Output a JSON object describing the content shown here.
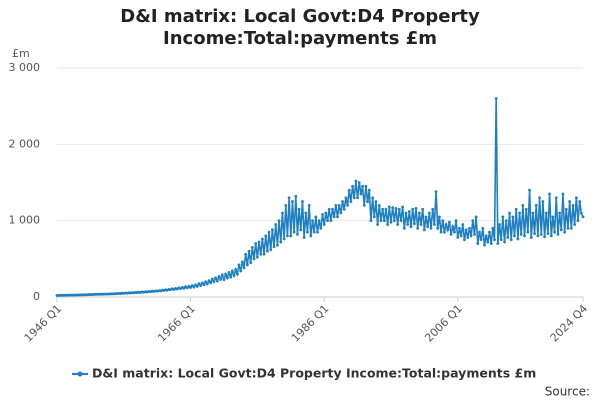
{
  "chart_data": {
    "type": "line",
    "title": "D&I matrix: Local Govt:D4 Property Income:Total:payments £m",
    "y_unit": "£m",
    "source": "Source:",
    "categories": [
      "1946 Q1",
      null,
      null,
      null,
      null,
      null,
      null,
      null,
      null,
      null,
      null,
      null,
      null,
      null,
      null,
      null,
      null,
      null,
      null,
      null,
      null,
      null,
      null,
      null,
      null,
      null,
      null,
      null,
      null,
      null,
      null,
      null,
      null,
      null,
      null,
      null,
      null,
      null,
      null,
      null,
      null,
      null,
      null,
      null,
      null,
      null,
      null,
      null,
      null,
      null,
      null,
      null,
      null,
      null,
      null,
      null,
      null,
      null,
      null,
      null,
      null,
      null,
      null,
      null,
      null,
      null,
      null,
      null,
      null,
      null,
      null,
      null,
      null,
      null,
      null,
      null,
      null,
      null,
      null,
      null,
      "1966 Q1",
      null,
      null,
      null,
      null,
      null,
      null,
      null,
      null,
      null,
      null,
      null,
      null,
      null,
      null,
      null,
      null,
      null,
      null,
      null,
      null,
      null,
      null,
      null,
      null,
      null,
      null,
      null,
      null,
      null,
      null,
      null,
      null,
      null,
      null,
      null,
      null,
      null,
      null,
      null,
      null,
      null,
      null,
      null,
      null,
      null,
      null,
      null,
      null,
      null,
      null,
      null,
      null,
      null,
      null,
      null,
      null,
      null,
      null,
      null,
      null,
      null,
      null,
      null,
      null,
      null,
      null,
      null,
      null,
      null,
      null,
      null,
      null,
      null,
      null,
      null,
      null,
      null,
      null,
      null,
      "1986 Q1",
      null,
      null,
      null,
      null,
      null,
      null,
      null,
      null,
      null,
      null,
      null,
      null,
      null,
      null,
      null,
      null,
      null,
      null,
      null,
      null,
      null,
      null,
      null,
      null,
      null,
      null,
      null,
      null,
      null,
      null,
      null,
      null,
      null,
      null,
      null,
      null,
      null,
      null,
      null,
      null,
      null,
      null,
      null,
      null,
      null,
      null,
      null,
      null,
      null,
      null,
      null,
      null,
      null,
      null,
      null,
      null,
      null,
      null,
      null,
      null,
      null,
      null,
      null,
      null,
      null,
      null,
      null,
      null,
      null,
      null,
      null,
      null,
      null,
      null,
      null,
      null,
      null,
      null,
      null,
      "2006 Q1",
      null,
      null,
      null,
      null,
      null,
      null,
      null,
      null,
      null,
      null,
      null,
      null,
      null,
      null,
      null,
      null,
      null,
      null,
      null,
      null,
      null,
      null,
      null,
      null,
      null,
      null,
      null,
      null,
      null,
      null,
      null,
      null,
      null,
      null,
      null,
      null,
      null,
      null,
      null,
      null,
      null,
      null,
      null,
      null,
      null,
      null,
      null,
      null,
      null,
      null,
      null,
      null,
      null,
      null,
      null,
      null,
      null,
      null,
      null,
      null,
      null,
      null,
      null,
      null,
      null,
      null,
      null,
      null,
      null,
      null,
      null,
      null,
      null,
      null,
      "2024 Q4"
    ],
    "series": [
      {
        "name": "D&I matrix: Local Govt:D4 Property Income:Total:payments £m",
        "color": "#1f7fc1",
        "values": [
          20,
          22,
          21,
          23,
          22,
          24,
          23,
          25,
          24,
          26,
          25,
          27,
          26,
          28,
          27,
          29,
          28,
          30,
          29,
          32,
          31,
          33,
          32,
          35,
          34,
          36,
          35,
          38,
          37,
          39,
          38,
          41,
          40,
          43,
          41,
          45,
          44,
          47,
          45,
          50,
          48,
          52,
          50,
          55,
          53,
          57,
          55,
          60,
          58,
          63,
          60,
          66,
          64,
          69,
          66,
          72,
          70,
          76,
          72,
          80,
          77,
          84,
          80,
          90,
          85,
          95,
          88,
          100,
          95,
          108,
          98,
          112,
          105,
          120,
          110,
          125,
          115,
          135,
          120,
          140,
          125,
          150,
          130,
          160,
          140,
          175,
          150,
          185,
          160,
          200,
          170,
          215,
          185,
          235,
          200,
          250,
          210,
          270,
          230,
          290,
          230,
          300,
          250,
          320,
          260,
          340,
          280,
          360,
          300,
          420,
          340,
          460,
          380,
          560,
          420,
          600,
          450,
          650,
          500,
          700,
          520,
          720,
          560,
          760,
          560,
          800,
          600,
          850,
          620,
          880,
          660,
          950,
          680,
          1000,
          720,
          1100,
          760,
          1200,
          800,
          1300,
          800,
          1250,
          850,
          1320,
          820,
          1150,
          880,
          1250,
          780,
          1100,
          850,
          1200,
          800,
          1000,
          850,
          1050,
          850,
          1000,
          900,
          1080,
          950,
          1100,
          1000,
          1150,
          1000,
          1150,
          1050,
          1200,
          1050,
          1200,
          1100,
          1250,
          1150,
          1300,
          1200,
          1400,
          1250,
          1450,
          1300,
          1520,
          1300,
          1500,
          1350,
          1450,
          1200,
          1450,
          1250,
          1400,
          1000,
          1300,
          1050,
          1250,
          950,
          1200,
          1000,
          1150,
          1000,
          1150,
          950,
          1180,
          980,
          1170,
          1000,
          1160,
          950,
          1150,
          1000,
          1180,
          900,
          1100,
          950,
          1120,
          920,
          1150,
          960,
          1160,
          900,
          1100,
          950,
          1150,
          880,
          1050,
          920,
          1100,
          900,
          1150,
          950,
          1380,
          900,
          1050,
          850,
          1000,
          850,
          950,
          880,
          980,
          820,
          920,
          850,
          1000,
          780,
          900,
          800,
          950,
          750,
          880,
          780,
          900,
          800,
          1000,
          820,
          1050,
          700,
          850,
          750,
          900,
          680,
          800,
          720,
          850,
          700,
          900,
          750,
          2600,
          700,
          950,
          750,
          1050,
          720,
          1000,
          780,
          1100,
          750,
          1050,
          800,
          1150,
          760,
          1100,
          820,
          1200,
          800,
          1150,
          850,
          1400,
          780,
          1100,
          830,
          1200,
          800,
          1300,
          820,
          1250,
          790,
          1100,
          830,
          1350,
          800,
          1050,
          850,
          1300,
          820,
          1100,
          880,
          1350,
          850,
          1150,
          900,
          1250,
          900,
          1200,
          950,
          1300,
          1000,
          1250,
          1100,
          1050
        ]
      }
    ],
    "ylim": [
      0,
      3000
    ],
    "yticks": [
      0,
      {
        "value": 1000,
        "label": "1 000"
      },
      {
        "value": 2000,
        "label": "2 000"
      },
      {
        "value": 3000,
        "label": "3 000"
      }
    ],
    "grid": true
  }
}
